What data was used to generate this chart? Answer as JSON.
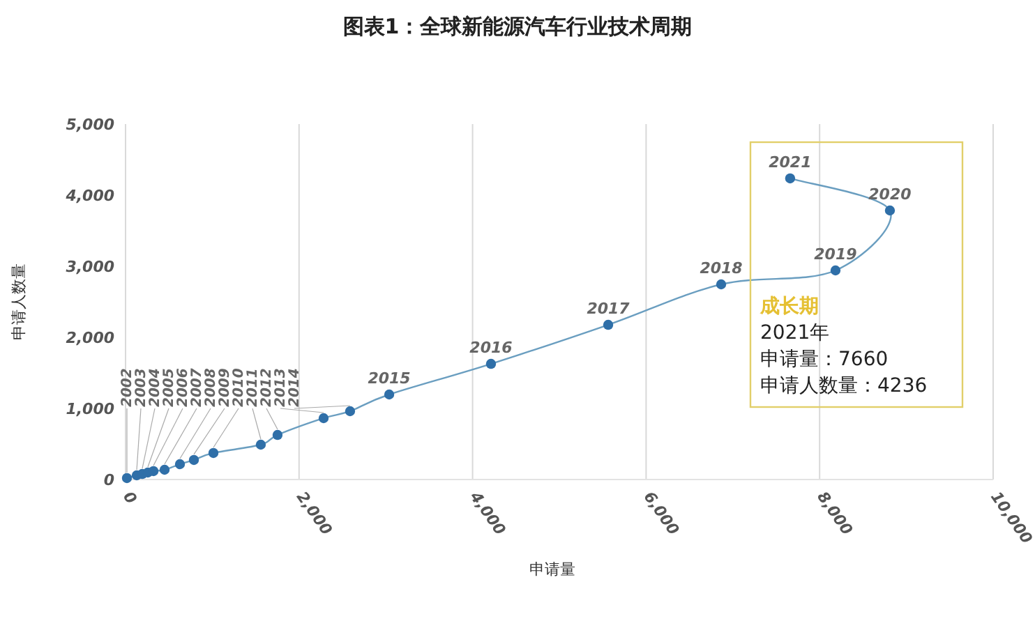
{
  "chart_data": {
    "type": "line",
    "title": "图表1：全球新能源汽车行业技术周期",
    "xlabel": "申请量",
    "ylabel": "申请人数量",
    "x": [
      16,
      129,
      193,
      257,
      322,
      450,
      627,
      788,
      1013,
      1559,
      1752,
      2283,
      2588,
      3039,
      4212,
      5563,
      6865,
      8183,
      8810,
      7660
    ],
    "series": [
      {
        "color": "#2f6fa8",
        "values": [
          20,
          59,
          78,
          98,
          118,
          137,
          216,
          275,
          373,
          490,
          627,
          863,
          961,
          1196,
          1627,
          2176,
          2745,
          2941,
          3784,
          4236
        ]
      }
    ],
    "xlim": [
      0,
      10000
    ],
    "ylim": [
      0,
      5000
    ],
    "xticks": [
      0,
      {
        "value": 2000,
        "label": "2,000"
      },
      {
        "value": 4000,
        "label": "4,000"
      },
      {
        "value": 6000,
        "label": "6,000"
      },
      {
        "value": 8000,
        "label": "8,000"
      },
      {
        "value": 10000,
        "label": "10,000"
      }
    ],
    "yticks": [
      0,
      {
        "value": 1000,
        "label": "1,000"
      },
      {
        "value": 2000,
        "label": "2,000"
      },
      {
        "value": 3000,
        "label": "3,000"
      },
      {
        "value": 4000,
        "label": "4,000"
      },
      {
        "value": 5000,
        "label": "5,000"
      }
    ],
    "grid": "x",
    "marker": "circle",
    "annotations": [
      "成长期",
      "2021年",
      "申请量：7660",
      "申请人数量：4236",
      {
        "text": "2002",
        "x": 16,
        "y": 20
      },
      {
        "text": "2003",
        "x": 129,
        "y": 59
      },
      {
        "text": "2004",
        "x": 193,
        "y": 78
      },
      {
        "text": "2005",
        "x": 257,
        "y": 98
      },
      {
        "text": "2006",
        "x": 322,
        "y": 118
      },
      {
        "text": "2007",
        "x": 450,
        "y": 137
      },
      {
        "text": "2008",
        "x": 627,
        "y": 216
      },
      {
        "text": "2009",
        "x": 788,
        "y": 275
      },
      {
        "text": "2010",
        "x": 1013,
        "y": 373
      },
      {
        "text": "2011",
        "x": 1559,
        "y": 490
      },
      {
        "text": "2012",
        "x": 1752,
        "y": 627
      },
      {
        "text": "2013",
        "x": 2283,
        "y": 863
      },
      {
        "text": "2014",
        "x": 2588,
        "y": 961
      },
      {
        "text": "2015",
        "x": 3039,
        "y": 1196
      },
      {
        "text": "2016",
        "x": 4212,
        "y": 1627
      },
      {
        "text": "2017",
        "x": 5563,
        "y": 2176
      },
      {
        "text": "2018",
        "x": 6865,
        "y": 2745
      },
      {
        "text": "2019",
        "x": 8183,
        "y": 2941
      },
      {
        "text": "2020",
        "x": 8810,
        "y": 3784
      },
      {
        "text": "2021",
        "x": 7660,
        "y": 4236
      }
    ]
  }
}
